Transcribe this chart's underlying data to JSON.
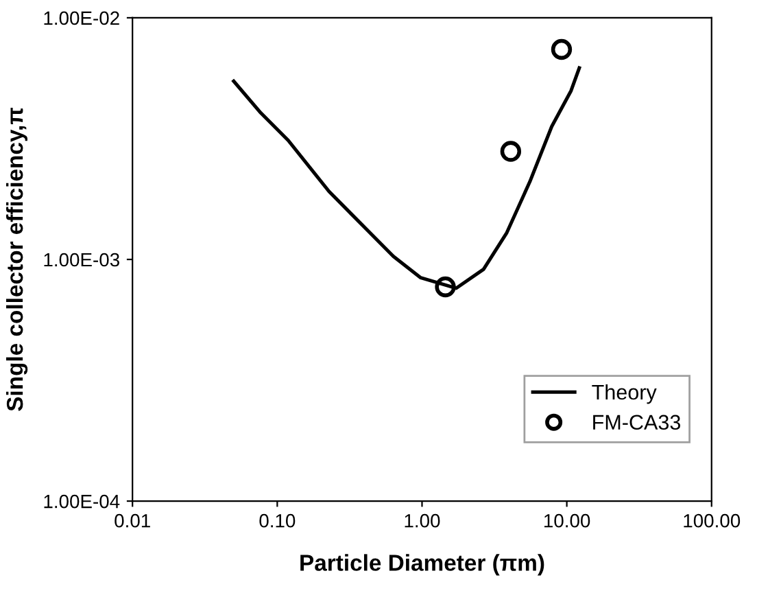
{
  "chart_data": {
    "type": "line",
    "xlabel": "Particle Diameter (πm)",
    "ylabel": "Single collector efficiency,π",
    "log": "xy",
    "xlim": [
      0.01,
      100
    ],
    "ylim": [
      0.0001,
      0.01
    ],
    "xticks": [
      {
        "value": 0.01,
        "label": "0.01"
      },
      {
        "value": 0.1,
        "label": "0.10"
      },
      {
        "value": 1,
        "label": "1.00"
      },
      {
        "value": 10,
        "label": "10.00"
      },
      {
        "value": 100,
        "label": "100.00"
      }
    ],
    "yticks": [
      {
        "value": 0.0001,
        "label": "1.00E-04"
      },
      {
        "value": 0.001,
        "label": "1.00E-03"
      },
      {
        "value": 0.01,
        "label": "1.00E-02"
      }
    ],
    "grid": false,
    "legend": "bottom right",
    "series": [
      {
        "name": "Theory",
        "color": "#000000",
        "marker": "none",
        "line_style": "solid",
        "x": [
          0.05,
          0.077,
          0.119,
          0.228,
          0.41,
          0.634,
          0.98,
          1.72,
          2.66,
          3.85,
          5.56,
          7.87,
          10.7,
          12.2
        ],
        "values": [
          0.00547,
          0.00404,
          0.00311,
          0.00191,
          0.00134,
          0.00103,
          0.00084,
          0.00076,
          0.00091,
          0.00129,
          0.0021,
          0.00355,
          0.00499,
          0.0062
        ]
      },
      {
        "name": "FM-CA33",
        "type": "scatter",
        "color": "#000000",
        "marker": "circle",
        "x": [
          1.45,
          4.1,
          9.2
        ],
        "values": [
          0.00077,
          0.0028,
          0.0074
        ]
      }
    ]
  }
}
